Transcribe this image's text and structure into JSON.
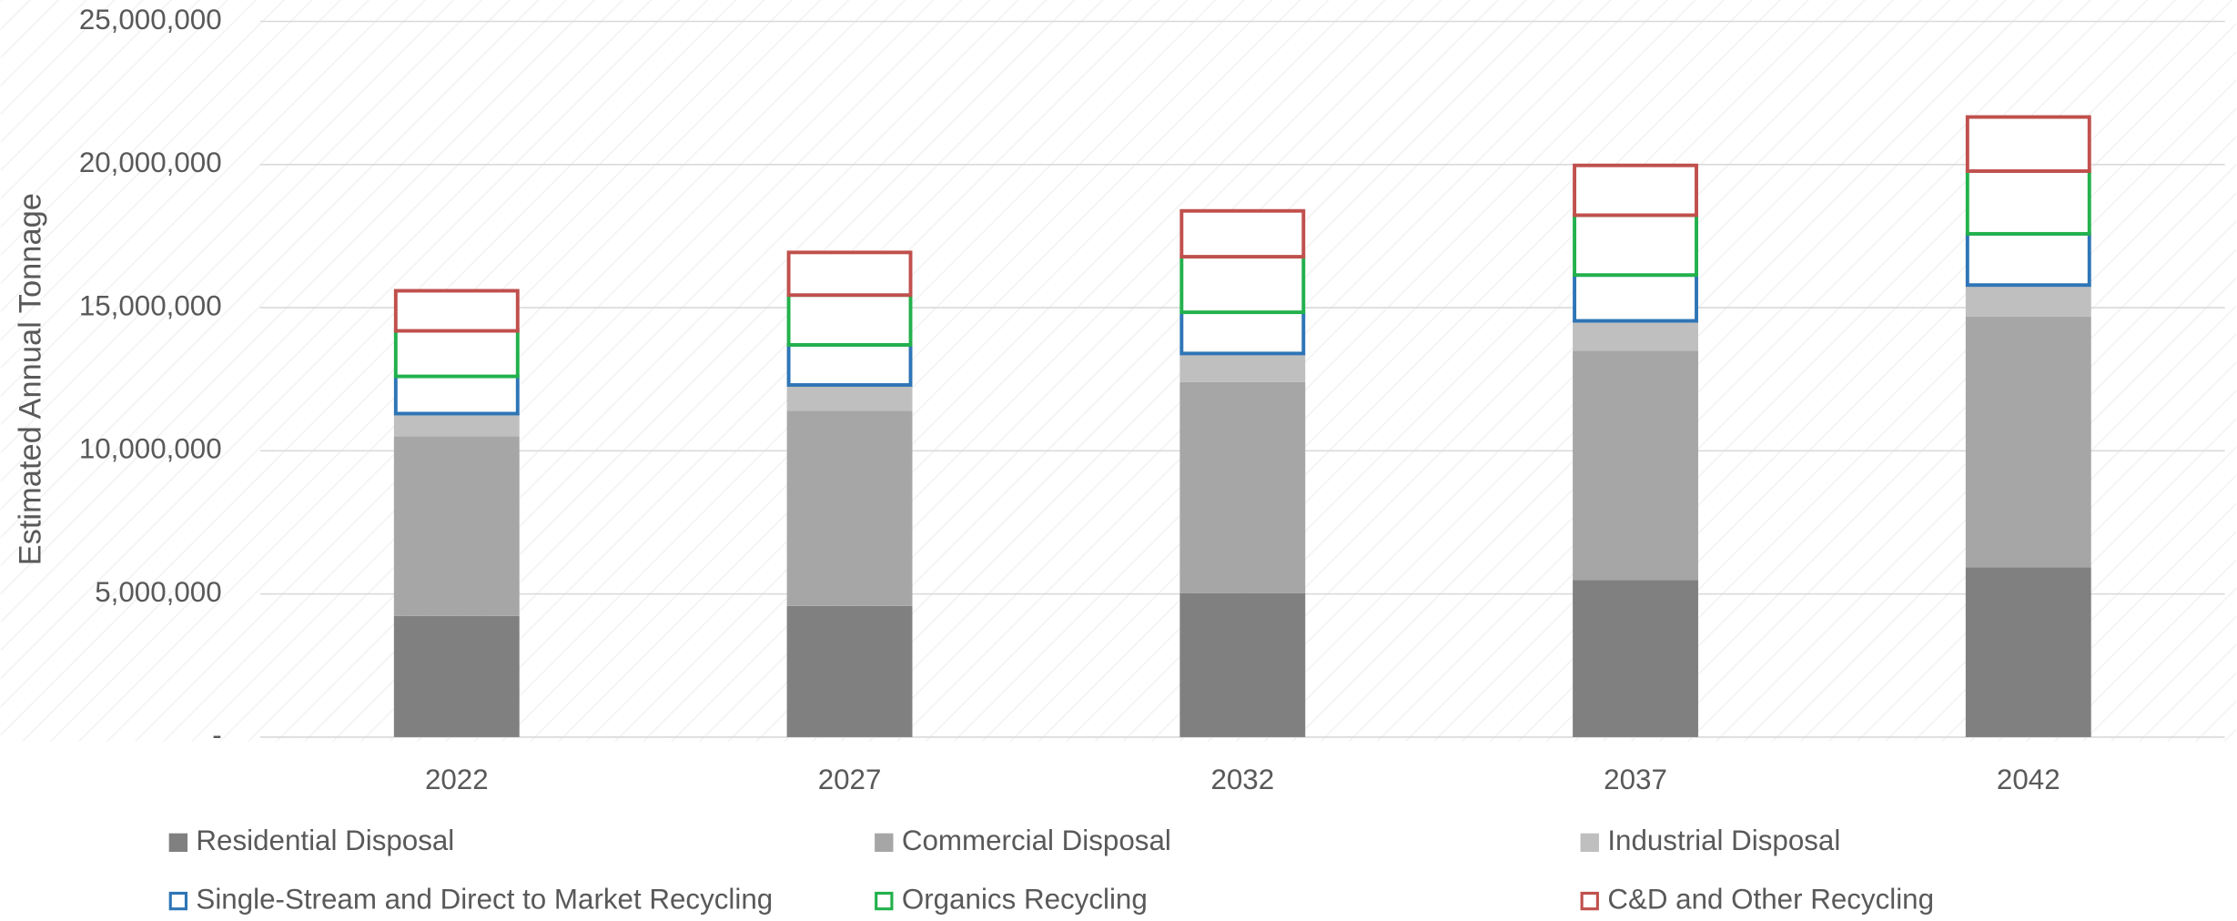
{
  "chart_data": {
    "type": "stacked_bar",
    "ylabel": "Estimated Annual Tonnage",
    "categories": [
      "2022",
      "2027",
      "2032",
      "2037",
      "2042"
    ],
    "series": [
      {
        "name": "Residential Disposal",
        "color": "#808080",
        "filled": true,
        "values": [
          4230000,
          4580000,
          5030000,
          5480000,
          5930000
        ]
      },
      {
        "name": "Commercial Disposal",
        "color": "#a6a6a6",
        "filled": true,
        "values": [
          6280000,
          6820000,
          7370000,
          8020000,
          8760000
        ]
      },
      {
        "name": "Industrial Disposal",
        "color": "#bfbfbf",
        "filled": true,
        "values": [
          790000,
          900000,
          1000000,
          1040000,
          1100000
        ]
      },
      {
        "name": "Single-Stream and Direct to Market Recycling",
        "color": "#2e75b6",
        "filled": false,
        "values": [
          1300000,
          1400000,
          1440000,
          1600000,
          1790000
        ]
      },
      {
        "name": "Organics Recycling",
        "color": "#22b14c",
        "filled": false,
        "values": [
          1590000,
          1740000,
          1940000,
          2090000,
          2190000
        ]
      },
      {
        "name": "C&D and Other Recycling",
        "color": "#c0504d",
        "filled": false,
        "values": [
          1400000,
          1490000,
          1600000,
          1740000,
          1890000
        ]
      }
    ],
    "ylim": [
      0,
      25000000
    ],
    "yticks": [
      {
        "value": 0,
        "label": "-"
      },
      {
        "value": 5000000,
        "label": "5,000,000"
      },
      {
        "value": 10000000,
        "label": "10,000,000"
      },
      {
        "value": 15000000,
        "label": "15,000,000"
      },
      {
        "value": 20000000,
        "label": "20,000,000"
      },
      {
        "value": 25000000,
        "label": "25,000,000"
      }
    ],
    "grid": true,
    "legend": "bottom"
  }
}
